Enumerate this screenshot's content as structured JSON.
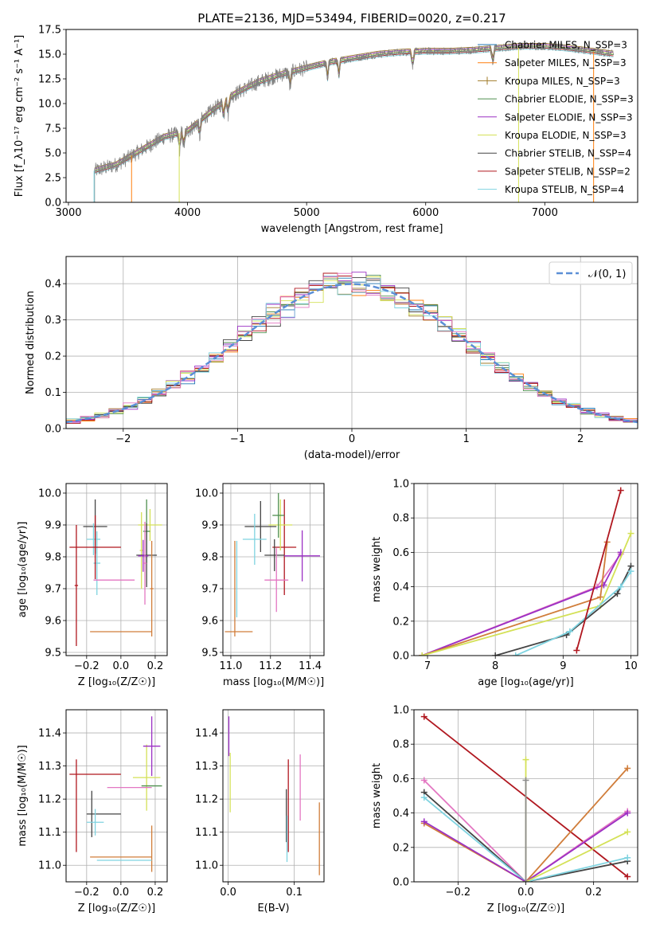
{
  "chart_data": [
    {
      "type": "line",
      "id": "spectrum",
      "title": "PLATE=2136, MJD=53494, FIBERID=0020, z=0.217",
      "xlabel": "wavelength [Angstrom, rest frame]",
      "ylabel": "Flux [f_λ10⁻¹⁷ erg cm⁻² s⁻¹ A⁻¹]",
      "xlim": [
        2980,
        7780
      ],
      "ylim": [
        0,
        17.5
      ],
      "xticks": [
        "3000",
        "4000",
        "5000",
        "6000",
        "7000"
      ],
      "yticks": [
        "0.0",
        "2.5",
        "5.0",
        "7.5",
        "10.0",
        "12.5",
        "15.0",
        "17.5"
      ],
      "legend_position": "top-right",
      "legend": [
        {
          "label": "Chabrier MILES, N_SSP=3",
          "color": "#1f77b4"
        },
        {
          "label": "Salpeter MILES, N_SSP=3",
          "color": "#ff7f0e"
        },
        {
          "label": "Kroupa MILES, N_SSP=3",
          "color": "#a07b2a"
        },
        {
          "label": "Chabrier ELODIE, N_SSP=3",
          "color": "#4f8f4f"
        },
        {
          "label": "Salpeter ELODIE, N_SSP=3",
          "color": "#9b30c4"
        },
        {
          "label": "Kroupa ELODIE, N_SSP=3",
          "color": "#d4e157"
        },
        {
          "label": "Chabrier STELIB, N_SSP=4",
          "color": "#444444"
        },
        {
          "label": "Salpeter STELIB, N_SSP=2",
          "color": "#b0171f"
        },
        {
          "label": "Kroupa STELIB, N_SSP=4",
          "color": "#7fd3e0"
        }
      ],
      "data_color": "#808080",
      "continuum": [
        [
          3220,
          3.2
        ],
        [
          3400,
          3.8
        ],
        [
          3600,
          5.2
        ],
        [
          3800,
          6.6
        ],
        [
          4000,
          7.2
        ],
        [
          4200,
          9.2
        ],
        [
          4400,
          11.0
        ],
        [
          4600,
          12.2
        ],
        [
          4800,
          13.0
        ],
        [
          5000,
          13.6
        ],
        [
          5200,
          14.2
        ],
        [
          5400,
          14.6
        ],
        [
          5600,
          15.0
        ],
        [
          5800,
          15.2
        ],
        [
          6000,
          15.3
        ],
        [
          6200,
          15.3
        ],
        [
          6400,
          15.4
        ],
        [
          6600,
          15.6
        ],
        [
          6800,
          15.8
        ],
        [
          7000,
          15.8
        ],
        [
          7200,
          15.6
        ],
        [
          7400,
          15.3
        ],
        [
          7580,
          15.0
        ]
      ]
    },
    {
      "type": "line",
      "id": "residual-histogram",
      "xlabel": "(data-model)/error",
      "ylabel": "Normed distribution",
      "xlim": [
        -2.5,
        2.5
      ],
      "ylim": [
        0,
        0.475
      ],
      "xticks": [
        "−2",
        "−1",
        "0",
        "1",
        "2"
      ],
      "yticks": [
        "0.0",
        "0.1",
        "0.2",
        "0.3",
        "0.4"
      ],
      "reference": {
        "label": "𝒩(0, 1)",
        "color": "#5b8fd6",
        "mean": 0,
        "sd": 1
      },
      "bins": 40
    },
    {
      "type": "scatter",
      "id": "age-vs-Z",
      "xlabel": "Z [log₁₀(Z/Z☉)]",
      "ylabel": "age  [log₁₀(age/yr)]",
      "xlim": [
        -0.32,
        0.27
      ],
      "ylim": [
        9.49,
        10.03
      ],
      "xticks": [
        "−0.2",
        "0.0",
        "0.2"
      ],
      "yticks": [
        "9.5",
        "9.6",
        "9.7",
        "9.8",
        "9.9",
        "10.0"
      ],
      "points": [
        {
          "color": "#444444",
          "x": -0.15,
          "xerr": 0.07,
          "y": 9.895,
          "yerr": 0.085
        },
        {
          "color": "#7fd3e0",
          "x": -0.16,
          "xerr": 0.04,
          "y": 9.855,
          "yerr": 0.05
        },
        {
          "color": "#7fd3e0",
          "x": -0.14,
          "xerr": 0.02,
          "y": 9.78,
          "yerr": 0.1
        },
        {
          "color": "#b0171f",
          "x": -0.15,
          "xerr": 0.15,
          "y": 9.83,
          "yerr": 0.1
        },
        {
          "color": "#b0171f",
          "x": -0.26,
          "xerr": 0.01,
          "y": 9.71,
          "yerr": 0.19
        },
        {
          "color": "#d4e157",
          "x": 0.17,
          "xerr": 0.07,
          "y": 9.9,
          "yerr": 0.05
        },
        {
          "color": "#d4e157",
          "x": 0.12,
          "xerr": 0.01,
          "y": 9.82,
          "yerr": 0.12
        },
        {
          "color": "#4f8f4f",
          "x": 0.15,
          "xerr": 0.02,
          "y": 9.88,
          "yerr": 0.1
        },
        {
          "color": "#444444",
          "x": 0.15,
          "xerr": 0.06,
          "y": 9.805,
          "yerr": 0.1
        },
        {
          "color": "#9b30c4",
          "x": 0.13,
          "xerr": 0.03,
          "y": 9.803,
          "yerr": 0.05
        },
        {
          "color": "#e377c2",
          "x": -0.04,
          "xerr": 0.12,
          "y": 9.727,
          "yerr": 0.0
        },
        {
          "color": "#e377c2",
          "x": 0.14,
          "xerr": 0.01,
          "y": 9.78,
          "yerr": 0.13
        },
        {
          "color": "#d07d3a",
          "x": 0.0,
          "xerr": 0.18,
          "y": 9.565,
          "yerr": 0.0
        },
        {
          "color": "#d07d3a",
          "x": 0.18,
          "xerr": 0.01,
          "y": 9.7,
          "yerr": 0.15
        }
      ]
    },
    {
      "type": "scatter",
      "id": "age-vs-mass",
      "xlabel": "mass [log₁₀(M/M☉)]",
      "ylabel": "",
      "xlim": [
        10.96,
        11.47
      ],
      "ylim": [
        9.49,
        10.03
      ],
      "xticks": [
        "11.0",
        "11.2",
        "11.4"
      ],
      "yticks": [
        "9.5",
        "9.6",
        "9.7",
        "9.8",
        "9.9",
        "10.0"
      ],
      "points": [
        {
          "color": "#444444",
          "x": 11.15,
          "xerr": 0.08,
          "y": 9.895,
          "yerr": 0.08
        },
        {
          "color": "#7fd3e0",
          "x": 11.12,
          "xerr": 0.06,
          "y": 9.855,
          "yerr": 0.08
        },
        {
          "color": "#b0171f",
          "x": 11.27,
          "xerr": 0.06,
          "y": 9.83,
          "yerr": 0.15
        },
        {
          "color": "#d4e157",
          "x": 11.25,
          "xerr": 0.06,
          "y": 9.9,
          "yerr": 0.08
        },
        {
          "color": "#4f8f4f",
          "x": 11.24,
          "xerr": 0.03,
          "y": 9.93,
          "yerr": 0.07
        },
        {
          "color": "#444444",
          "x": 11.22,
          "xerr": 0.05,
          "y": 9.805,
          "yerr": 0.05
        },
        {
          "color": "#9b30c4",
          "x": 11.36,
          "xerr": 0.09,
          "y": 9.803,
          "yerr": 0.08
        },
        {
          "color": "#e377c2",
          "x": 11.23,
          "xerr": 0.06,
          "y": 9.727,
          "yerr": 0.1
        },
        {
          "color": "#d07d3a",
          "x": 11.04,
          "xerr": 0.07,
          "y": 9.565,
          "yerr": 0.0
        },
        {
          "color": "#d07d3a",
          "x": 11.02,
          "xerr": 0.0,
          "y": 9.7,
          "yerr": 0.15
        },
        {
          "color": "#7fd3e0",
          "x": 11.03,
          "xerr": 0.0,
          "y": 9.73,
          "yerr": 0.12
        }
      ]
    },
    {
      "type": "line",
      "id": "massweight-vs-age",
      "xlabel": "age  [log₁₀(age/yr)]",
      "ylabel": "mass weight",
      "xlim": [
        6.8,
        10.1
      ],
      "ylim": [
        0,
        1.0
      ],
      "xticks": [
        "7",
        "8",
        "9",
        "10"
      ],
      "yticks": [
        "0.0",
        "0.2",
        "0.4",
        "0.6",
        "0.8",
        "1.0"
      ],
      "series": [
        {
          "color": "#e377c2",
          "points": [
            [
              6.92,
              0.0
            ],
            [
              9.5,
              0.4
            ],
            [
              9.85,
              0.59
            ]
          ]
        },
        {
          "color": "#9b30c4",
          "points": [
            [
              6.92,
              0.0
            ],
            [
              9.6,
              0.41
            ],
            [
              9.85,
              0.6
            ]
          ]
        },
        {
          "color": "#d07d3a",
          "points": [
            [
              6.92,
              0.0
            ],
            [
              9.55,
              0.34
            ],
            [
              9.65,
              0.66
            ]
          ]
        },
        {
          "color": "#d4e157",
          "points": [
            [
              6.92,
              0.0
            ],
            [
              9.55,
              0.29
            ],
            [
              10.0,
              0.71
            ]
          ]
        },
        {
          "color": "#444444",
          "points": [
            [
              8.0,
              0.0
            ],
            [
              9.05,
              0.12
            ],
            [
              9.8,
              0.36
            ],
            [
              10.0,
              0.52
            ]
          ]
        },
        {
          "color": "#7fd3e0",
          "points": [
            [
              8.3,
              0.0
            ],
            [
              9.1,
              0.14
            ],
            [
              9.85,
              0.4
            ],
            [
              10.0,
              0.49
            ]
          ]
        },
        {
          "color": "#b0171f",
          "points": [
            [
              9.2,
              0.03
            ],
            [
              9.85,
              0.96
            ]
          ]
        }
      ]
    },
    {
      "type": "scatter",
      "id": "mass-vs-Z",
      "xlabel": "Z [log₁₀(Z/Z☉)]",
      "ylabel": "mass [log₁₀(M/M☉)]",
      "xlim": [
        -0.32,
        0.27
      ],
      "ylim": [
        10.95,
        11.47
      ],
      "xticks": [
        "−0.2",
        "0.0",
        "0.2"
      ],
      "yticks": [
        "11.0",
        "11.1",
        "11.2",
        "11.3",
        "11.4"
      ],
      "points": [
        {
          "color": "#b0171f",
          "x": -0.15,
          "xerr": 0.15,
          "y": 11.275,
          "yerr": 0.0
        },
        {
          "color": "#b0171f",
          "x": -0.26,
          "xerr": 0.0,
          "y": 11.18,
          "yerr": 0.14
        },
        {
          "color": "#444444",
          "x": -0.1,
          "xerr": 0.1,
          "y": 11.155,
          "yerr": 0.0
        },
        {
          "color": "#444444",
          "x": -0.17,
          "xerr": 0.0,
          "y": 11.155,
          "yerr": 0.07
        },
        {
          "color": "#7fd3e0",
          "x": -0.15,
          "xerr": 0.05,
          "y": 11.13,
          "yerr": 0.04
        },
        {
          "color": "#d4e157",
          "x": 0.15,
          "xerr": 0.08,
          "y": 11.265,
          "yerr": 0.1
        },
        {
          "color": "#4f8f4f",
          "x": 0.18,
          "xerr": 0.06,
          "y": 11.24,
          "yerr": 0.0
        },
        {
          "color": "#9b30c4",
          "x": 0.18,
          "xerr": 0.05,
          "y": 11.36,
          "yerr": 0.09
        },
        {
          "color": "#e377c2",
          "x": 0.05,
          "xerr": 0.13,
          "y": 11.235,
          "yerr": 0.0
        },
        {
          "color": "#e377c2",
          "x": -0.01,
          "xerr": 0.0,
          "y": 11.1,
          "yerr": 0.0
        },
        {
          "color": "#d07d3a",
          "x": 0.0,
          "xerr": 0.18,
          "y": 11.025,
          "yerr": 0.0
        },
        {
          "color": "#d07d3a",
          "x": 0.18,
          "xerr": 0.0,
          "y": 11.05,
          "yerr": 0.07
        },
        {
          "color": "#7fd3e0",
          "x": 0.02,
          "xerr": 0.16,
          "y": 11.015,
          "yerr": 0.0
        }
      ]
    },
    {
      "type": "scatter",
      "id": "mass-vs-ebv",
      "xlabel": "E(B-V)",
      "ylabel": "",
      "xlim": [
        -0.008,
        0.145
      ],
      "ylim": [
        10.95,
        11.47
      ],
      "xticks": [
        "0.0",
        "0.1"
      ],
      "yticks": [
        "11.0",
        "11.1",
        "11.2",
        "11.3",
        "11.4"
      ],
      "points": [
        {
          "color": "#9b30c4",
          "x": 0.001,
          "xerr": 0,
          "y": 11.39,
          "yerr": 0.06
        },
        {
          "color": "#d4e157",
          "x": 0.003,
          "xerr": 0,
          "y": 11.25,
          "yerr": 0.09
        },
        {
          "color": "#444444",
          "x": 0.088,
          "xerr": 0,
          "y": 11.15,
          "yerr": 0.08
        },
        {
          "color": "#7fd3e0",
          "x": 0.089,
          "xerr": 0,
          "y": 11.08,
          "yerr": 0.07
        },
        {
          "color": "#b0171f",
          "x": 0.091,
          "xerr": 0,
          "y": 11.18,
          "yerr": 0.14
        },
        {
          "color": "#e377c2",
          "x": 0.109,
          "xerr": 0,
          "y": 11.235,
          "yerr": 0.1
        },
        {
          "color": "#d07d3a",
          "x": 0.138,
          "xerr": 0,
          "y": 11.08,
          "yerr": 0.11
        }
      ]
    },
    {
      "type": "line",
      "id": "massweight-vs-Z",
      "xlabel": "Z [log₁₀(Z/Z☉)]",
      "ylabel": "mass weight",
      "xlim": [
        -0.33,
        0.33
      ],
      "ylim": [
        0,
        1.0
      ],
      "xticks": [
        "−0.2",
        "0.0",
        "0.2"
      ],
      "yticks": [
        "0.0",
        "0.2",
        "0.4",
        "0.6",
        "0.8",
        "1.0"
      ],
      "series": [
        {
          "color": "#b0171f",
          "points": [
            [
              -0.3,
              0.96
            ],
            [
              0.3,
              0.03
            ]
          ]
        },
        {
          "color": "#e377c2",
          "points": [
            [
              -0.3,
              0.59
            ],
            [
              0.0,
              0.0
            ],
            [
              0.3,
              0.41
            ]
          ]
        },
        {
          "color": "#444444",
          "points": [
            [
              -0.3,
              0.52
            ],
            [
              0.0,
              0.0
            ],
            [
              0.3,
              0.12
            ]
          ]
        },
        {
          "color": "#7fd3e0",
          "points": [
            [
              -0.3,
              0.49
            ],
            [
              0.0,
              0.0
            ],
            [
              0.3,
              0.14
            ]
          ]
        },
        {
          "color": "#d07d3a",
          "points": [
            [
              -0.3,
              0.34
            ],
            [
              0.0,
              0.0
            ],
            [
              0.3,
              0.66
            ]
          ]
        },
        {
          "color": "#9b30c4",
          "points": [
            [
              -0.3,
              0.35
            ],
            [
              0.0,
              0.0
            ],
            [
              0.3,
              0.4
            ]
          ]
        },
        {
          "color": "#d4e157",
          "points": [
            [
              0.0,
              0.71
            ],
            [
              0.0,
              0.0
            ],
            [
              0.3,
              0.29
            ]
          ]
        },
        {
          "color": "#8c8c8c",
          "points": [
            [
              0.0,
              0.59
            ],
            [
              0.0,
              0.0
            ]
          ]
        }
      ]
    }
  ]
}
